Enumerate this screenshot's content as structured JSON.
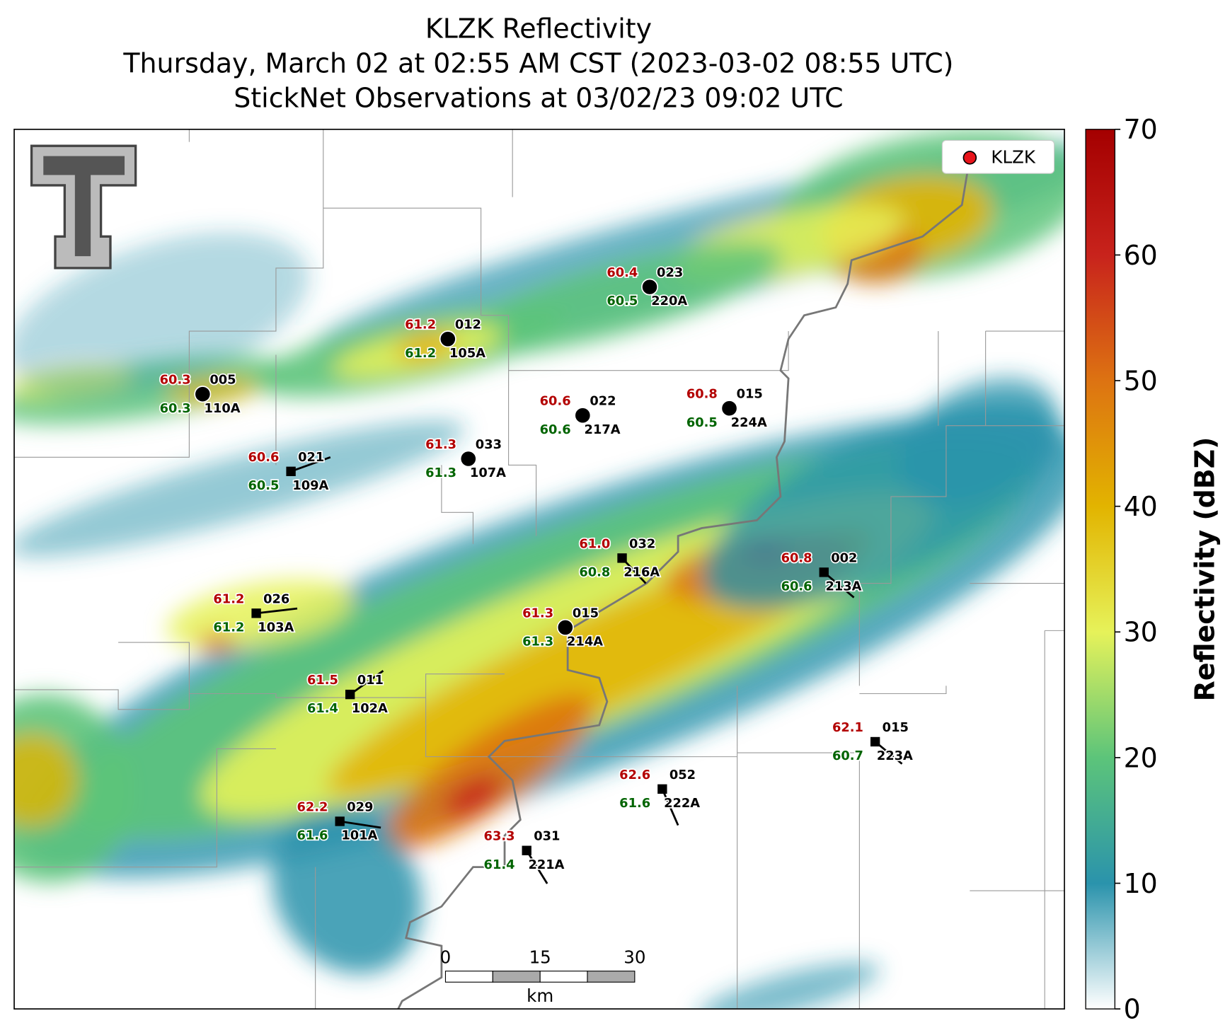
{
  "title": [
    "KLZK Reflectivity",
    "Thursday, March 02 at 02:55 AM CST (2023-03-02 08:55 UTC)",
    "StickNet Observations at 03/02/23 09:02 UTC"
  ],
  "legend": {
    "label": "KLZK",
    "color": "#e8141b"
  },
  "colorbar": {
    "label": "Reflectivity (dBZ)",
    "lim": [
      0,
      70
    ],
    "ticks": [
      0,
      10,
      20,
      30,
      40,
      50,
      60,
      70
    ],
    "colors": [
      "#ffffff",
      "#2a93ac",
      "#5cc47a",
      "#e6f25a",
      "#e2b400",
      "#dd7312",
      "#c8231c",
      "#a40000"
    ]
  },
  "scale_bar": {
    "ticks": [
      "0",
      "15",
      "30"
    ],
    "unit": "km"
  },
  "stations": [
    {
      "id": "005",
      "probe": "110A",
      "temp": "60.3",
      "dew": "60.3",
      "marker": "circle"
    },
    {
      "id": "012",
      "probe": "105A",
      "temp": "61.2",
      "dew": "61.2",
      "marker": "circle"
    },
    {
      "id": "023",
      "probe": "220A",
      "temp": "60.4",
      "dew": "60.5",
      "marker": "circle"
    },
    {
      "id": "022",
      "probe": "217A",
      "temp": "60.6",
      "dew": "60.6",
      "marker": "circle"
    },
    {
      "id": "015",
      "probe": "224A",
      "temp": "60.8",
      "dew": "60.5",
      "marker": "circle"
    },
    {
      "id": "033",
      "probe": "107A",
      "temp": "61.3",
      "dew": "61.3",
      "marker": "circle"
    },
    {
      "id": "021",
      "probe": "109A",
      "temp": "60.6",
      "dew": "60.5",
      "marker": "square"
    },
    {
      "id": "032",
      "probe": "216A",
      "temp": "61.0",
      "dew": "60.8",
      "marker": "square"
    },
    {
      "id": "002",
      "probe": "213A",
      "temp": "60.8",
      "dew": "60.6",
      "marker": "square"
    },
    {
      "id": "026",
      "probe": "103A",
      "temp": "61.2",
      "dew": "61.2",
      "marker": "square"
    },
    {
      "id": "015",
      "probe": "214A",
      "temp": "61.3",
      "dew": "61.3",
      "marker": "circle"
    },
    {
      "id": "011",
      "probe": "102A",
      "temp": "61.5",
      "dew": "61.4",
      "marker": "square"
    },
    {
      "id": "015",
      "probe": "223A",
      "temp": "62.1",
      "dew": "60.7",
      "marker": "square"
    },
    {
      "id": "052",
      "probe": "222A",
      "temp": "62.6",
      "dew": "61.6",
      "marker": "square"
    },
    {
      "id": "029",
      "probe": "101A",
      "temp": "62.2",
      "dew": "61.6",
      "marker": "square"
    },
    {
      "id": "031",
      "probe": "221A",
      "temp": "63.3",
      "dew": "61.4",
      "marker": "square"
    }
  ]
}
